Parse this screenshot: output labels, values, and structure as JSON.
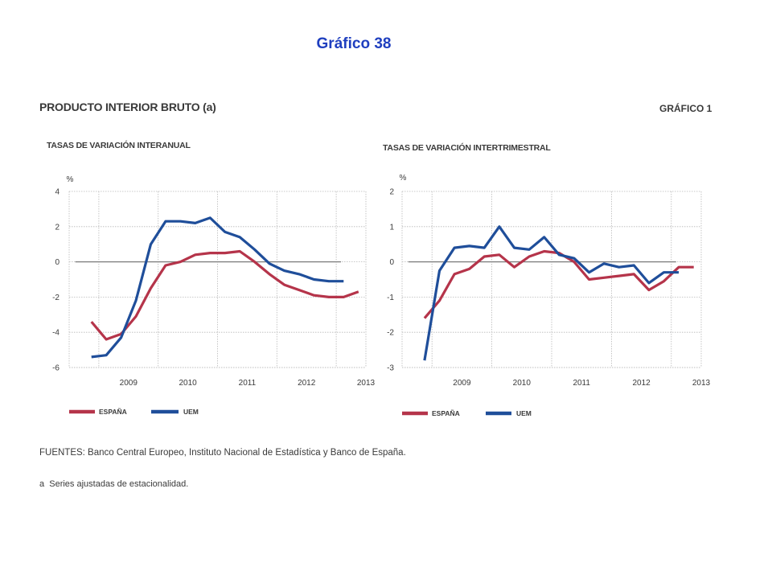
{
  "slide_title": "Gráfico 38",
  "figure": {
    "title": "PRODUCTO INTERIOR BRUTO (a)",
    "number": "GRÁFICO 1"
  },
  "colors": {
    "espana": "#b5344a",
    "uem": "#1f4e9a",
    "zero_line": "#7a7a7a",
    "grid": "#b8b8b8"
  },
  "footnotes": {
    "sources": "FUENTES: Banco Central Europeo, Instituto Nacional de Estadística y Banco de España.",
    "note_label": "a",
    "note_text": "Series ajustadas de estacionalidad."
  },
  "chart_data": [
    {
      "type": "line",
      "title": "TASAS DE VARIACIÓN INTERANUAL",
      "ylabel": "%",
      "ylim": [
        -6,
        4
      ],
      "yticks": [
        4,
        2,
        0,
        -2,
        -4,
        -6
      ],
      "xlim": [
        2008.5,
        2013.5
      ],
      "xtick_labels": [
        "2009",
        "2010",
        "2011",
        "2012",
        "2013"
      ],
      "legend": "bottom",
      "grid": true,
      "series": [
        {
          "name": "ESPAÑA",
          "color": "#b5344a",
          "x": [
            "2008 T4",
            "2009 T1",
            "2009 T2",
            "2009 T3",
            "2009 T4",
            "2010 T1",
            "2010 T2",
            "2010 T3",
            "2010 T4",
            "2011 T1",
            "2011 T2",
            "2011 T3",
            "2011 T4",
            "2012 T1",
            "2012 T2",
            "2012 T3",
            "2012 T4",
            "2013 T1",
            "2013 T2"
          ],
          "values": [
            -3.4,
            -4.4,
            -4.1,
            -3.1,
            -1.5,
            -0.2,
            0.0,
            0.4,
            0.5,
            0.5,
            0.6,
            0.0,
            -0.7,
            -1.3,
            -1.6,
            -1.9,
            -2.0,
            -2.0,
            -1.7
          ]
        },
        {
          "name": "UEM",
          "color": "#1f4e9a",
          "x": [
            "2008 T4",
            "2009 T1",
            "2009 T2",
            "2009 T3",
            "2009 T4",
            "2010 T1",
            "2010 T2",
            "2010 T3",
            "2010 T4",
            "2011 T1",
            "2011 T2",
            "2011 T3",
            "2011 T4",
            "2012 T1",
            "2012 T2",
            "2012 T3",
            "2012 T4",
            "2013 T1"
          ],
          "values": [
            -5.4,
            -5.3,
            -4.3,
            -2.2,
            1.0,
            2.3,
            2.3,
            2.2,
            2.5,
            1.7,
            1.4,
            0.7,
            -0.1,
            -0.5,
            -0.7,
            -1.0,
            -1.1,
            -1.1
          ]
        }
      ]
    },
    {
      "type": "line",
      "title": "TASAS DE VARIACIÓN INTERTRIMESTRAL",
      "ylabel": "%",
      "ylim": [
        -3,
        2
      ],
      "yticks": [
        2,
        1,
        0,
        -1,
        -2,
        -3
      ],
      "xlim": [
        2008.5,
        2013.5
      ],
      "xtick_labels": [
        "2009",
        "2010",
        "2011",
        "2012",
        "2013"
      ],
      "legend": "bottom",
      "grid": true,
      "series": [
        {
          "name": "ESPAÑA",
          "color": "#b5344a",
          "x": [
            "2008 T4",
            "2009 T1",
            "2009 T2",
            "2009 T3",
            "2009 T4",
            "2010 T1",
            "2010 T2",
            "2010 T3",
            "2010 T4",
            "2011 T1",
            "2011 T2",
            "2011 T3",
            "2011 T4",
            "2012 T1",
            "2012 T2",
            "2012 T3",
            "2012 T4",
            "2013 T1",
            "2013 T2"
          ],
          "values": [
            -1.6,
            -1.1,
            -0.35,
            -0.2,
            0.15,
            0.2,
            -0.15,
            0.15,
            0.3,
            0.25,
            0.0,
            -0.5,
            -0.45,
            -0.4,
            -0.35,
            -0.8,
            -0.55,
            -0.15,
            -0.15
          ]
        },
        {
          "name": "UEM",
          "color": "#1f4e9a",
          "x": [
            "2008 T4",
            "2009 T1",
            "2009 T2",
            "2009 T3",
            "2009 T4",
            "2010 T1",
            "2010 T2",
            "2010 T3",
            "2010 T4",
            "2011 T1",
            "2011 T2",
            "2011 T3",
            "2011 T4",
            "2012 T1",
            "2012 T2",
            "2012 T3",
            "2012 T4",
            "2013 T1"
          ],
          "values": [
            -2.8,
            -0.25,
            0.4,
            0.45,
            0.4,
            1.0,
            0.4,
            0.35,
            0.7,
            0.2,
            0.1,
            -0.3,
            -0.05,
            -0.15,
            -0.1,
            -0.6,
            -0.3,
            -0.3
          ]
        }
      ]
    }
  ]
}
